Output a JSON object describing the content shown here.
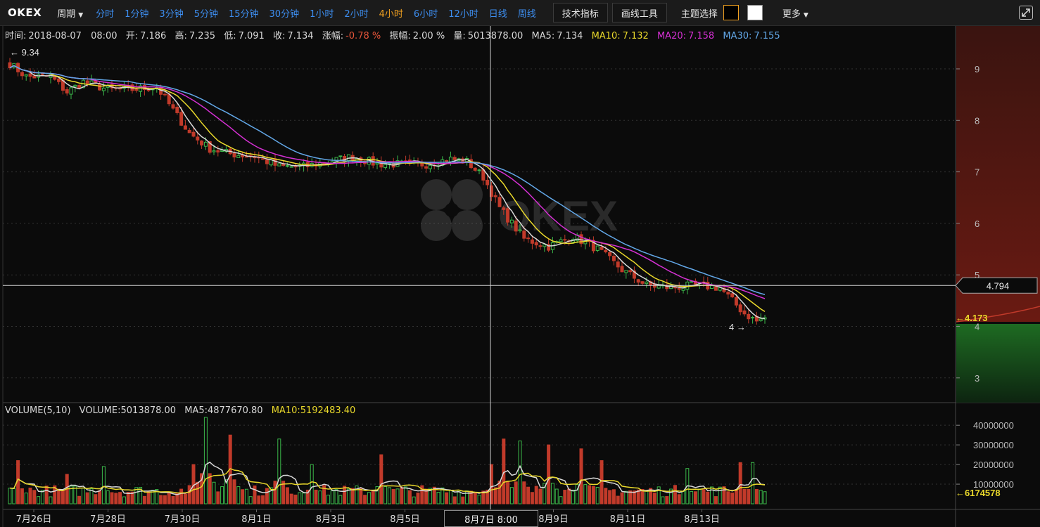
{
  "toolbar": {
    "logo": "OKEX",
    "period_label": "周期",
    "periods": [
      "分时",
      "1分钟",
      "3分钟",
      "5分钟",
      "15分钟",
      "30分钟",
      "1小时",
      "2小时",
      "4小时",
      "6小时",
      "12小时",
      "日线",
      "周线"
    ],
    "active_period": "4小时",
    "indicators_button": "技术指标",
    "drawing_button": "画线工具",
    "theme_label": "主题选择",
    "theme_options": [
      "#000000",
      "#ffffff"
    ],
    "more_label": "更多",
    "expand_icon": "expand-icon"
  },
  "info": {
    "time_label": "时间:",
    "time": "2018-08-07",
    "hour": "08:00",
    "open_label": "开:",
    "open": "7.186",
    "high_label": "高:",
    "high": "7.235",
    "low_label": "低:",
    "low": "7.091",
    "close_label": "收:",
    "close": "7.134",
    "change_label": "涨幅:",
    "change": "-0.78 %",
    "amplitude_label": "振幅:",
    "amplitude": "2.00 %",
    "volume_label": "量:",
    "volume": "5013878.00",
    "ma5_label": "MA5:",
    "ma5": "7.134",
    "ma10_label": "MA10:",
    "ma10": "7.132",
    "ma20_label": "MA20:",
    "ma20": "7.158",
    "ma30_label": "MA30:",
    "ma30": "7.155"
  },
  "volume_info": {
    "title": "VOLUME(5,10)",
    "volume_label": "VOLUME:",
    "volume": "5013878.00",
    "ma5_label": "MA5:",
    "ma5": "4877670.80",
    "ma10_label": "MA10:",
    "ma10": "5192483.40"
  },
  "crosshair": {
    "price": "4.794",
    "datetime": "8月7日  8:00"
  },
  "colors": {
    "up": "#3bb84a",
    "down": "#c13a2a",
    "ma5": "#d8d8d8",
    "ma10": "#e9d82b",
    "ma20": "#d530d3",
    "ma30": "#62a7e7",
    "grid": "#333333"
  },
  "chart_data": {
    "type": "candlestick",
    "price_axis": {
      "ticks": [
        3,
        4,
        5,
        6,
        7,
        8,
        9
      ],
      "range": [
        2.6,
        9.7
      ]
    },
    "volume_axis": {
      "ticks": [
        10000000,
        20000000,
        30000000,
        40000000
      ],
      "range": [
        0,
        44000000
      ]
    },
    "x_axis_labels": [
      "7月26日",
      "7月28日",
      "7月30日",
      "8月1日",
      "8月3日",
      "8月5日",
      "8月7日",
      "8月9日",
      "8月11日",
      "8月13日"
    ],
    "annotations": {
      "high_marker": "9.34",
      "low_marker": "4",
      "last_price": "4.173",
      "last_volume": "6174578",
      "watermark": "OKEX"
    },
    "anchors": [
      {
        "i": 0,
        "p": 9.1
      },
      {
        "i": 4,
        "p": 8.85
      },
      {
        "i": 10,
        "p": 8.85
      },
      {
        "i": 14,
        "p": 8.55
      },
      {
        "i": 18,
        "p": 8.75
      },
      {
        "i": 24,
        "p": 8.6
      },
      {
        "i": 30,
        "p": 8.6
      },
      {
        "i": 36,
        "p": 8.65
      },
      {
        "i": 40,
        "p": 8.2
      },
      {
        "i": 44,
        "p": 7.75
      },
      {
        "i": 49,
        "p": 7.45
      },
      {
        "i": 54,
        "p": 7.35
      },
      {
        "i": 60,
        "p": 7.3
      },
      {
        "i": 66,
        "p": 7.1
      },
      {
        "i": 72,
        "p": 7.1
      },
      {
        "i": 78,
        "p": 7.2
      },
      {
        "i": 84,
        "p": 7.3
      },
      {
        "i": 90,
        "p": 7.15
      },
      {
        "i": 96,
        "p": 7.15
      },
      {
        "i": 102,
        "p": 7.15
      },
      {
        "i": 108,
        "p": 7.25
      },
      {
        "i": 112,
        "p": 7.2
      },
      {
        "i": 116,
        "p": 6.9
      },
      {
        "i": 120,
        "p": 6.3
      },
      {
        "i": 126,
        "p": 5.7
      },
      {
        "i": 132,
        "p": 5.55
      },
      {
        "i": 138,
        "p": 5.75
      },
      {
        "i": 144,
        "p": 5.5
      },
      {
        "i": 150,
        "p": 5.1
      },
      {
        "i": 156,
        "p": 4.8
      },
      {
        "i": 162,
        "p": 4.75
      },
      {
        "i": 168,
        "p": 4.8
      },
      {
        "i": 174,
        "p": 4.75
      },
      {
        "i": 180,
        "p": 4.25
      },
      {
        "i": 183,
        "p": 4.1
      },
      {
        "i": 185,
        "p": 4.17
      }
    ],
    "vol_peaks": [
      {
        "i": 2,
        "v": 22000000
      },
      {
        "i": 14,
        "v": 15000000
      },
      {
        "i": 23,
        "v": 19000000
      },
      {
        "i": 45,
        "v": 20000000
      },
      {
        "i": 48,
        "v": 44000000
      },
      {
        "i": 54,
        "v": 35000000
      },
      {
        "i": 66,
        "v": 33000000
      },
      {
        "i": 74,
        "v": 20000000
      },
      {
        "i": 91,
        "v": 25000000
      },
      {
        "i": 118,
        "v": 20000000
      },
      {
        "i": 121,
        "v": 33000000
      },
      {
        "i": 125,
        "v": 32000000
      },
      {
        "i": 132,
        "v": 30000000
      },
      {
        "i": 140,
        "v": 28000000
      },
      {
        "i": 145,
        "v": 22000000
      },
      {
        "i": 166,
        "v": 18000000
      },
      {
        "i": 179,
        "v": 21000000
      },
      {
        "i": 182,
        "v": 21000000
      }
    ]
  }
}
